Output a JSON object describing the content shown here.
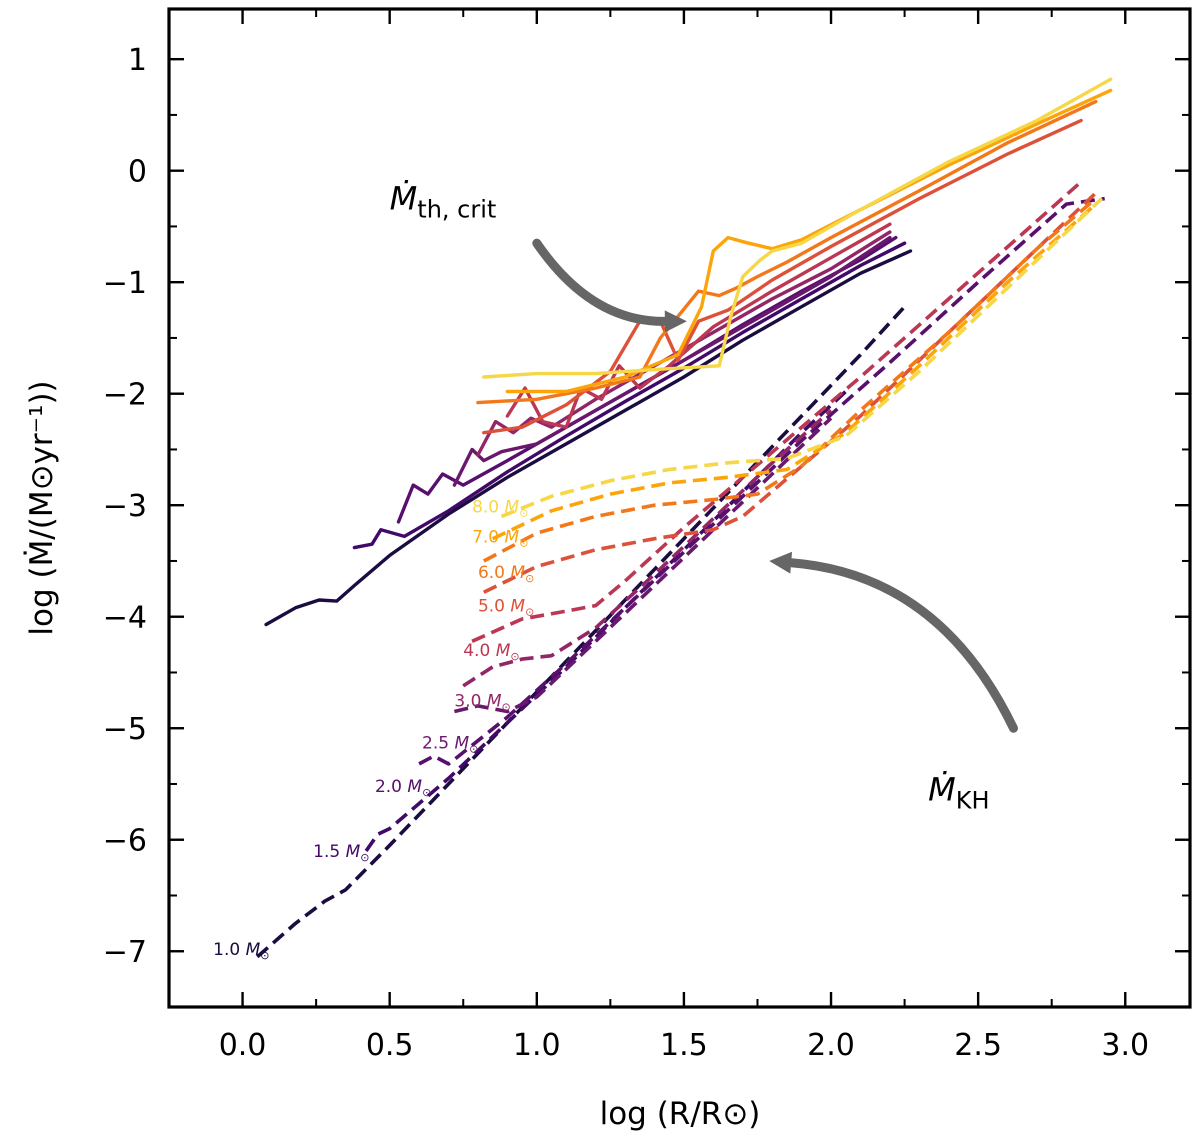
{
  "chart_data": {
    "type": "line",
    "title": "",
    "xlabel": "log (R/R⊙)",
    "ylabel": "log (Ṁ/(M⊙yr⁻¹))",
    "xlim": [
      -0.25,
      3.22
    ],
    "ylim": [
      -7.5,
      1.45
    ],
    "xticks": [
      0.0,
      0.5,
      1.0,
      1.5,
      2.0,
      2.5,
      3.0
    ],
    "xtick_labels": [
      "0.0",
      "0.5",
      "1.0",
      "1.5",
      "2.0",
      "2.5",
      "3.0"
    ],
    "yticks": [
      -7,
      -6,
      -5,
      -4,
      -3,
      -2,
      -1,
      0,
      1
    ],
    "ytick_labels": [
      "−7",
      "−6",
      "−5",
      "−4",
      "−3",
      "−2",
      "−1",
      "0",
      "1"
    ],
    "annotations": [
      {
        "id": "mth-crit",
        "text_main": "Ṁ",
        "text_sub": "th, crit",
        "x": 0.5,
        "y": -0.35
      },
      {
        "id": "mkh",
        "text_main": "Ṁ",
        "text_sub": "KH",
        "x": 2.33,
        "y": -5.65
      }
    ],
    "arrows": [
      {
        "id": "arrow-mth",
        "from": [
          1.0,
          -0.65
        ],
        "to": [
          1.51,
          -1.35
        ]
      },
      {
        "id": "arrow-mkh",
        "from": [
          2.62,
          -5.0
        ],
        "to": [
          1.79,
          -3.5
        ]
      }
    ],
    "series": [
      {
        "name": "1.0 M⊙",
        "label_text": "1.0",
        "color": "#1b0c41",
        "label_at": [
          -0.1,
          -6.98
        ],
        "mth_crit": [
          [
            0.08,
            -4.07
          ],
          [
            0.18,
            -3.92
          ],
          [
            0.26,
            -3.85
          ],
          [
            0.32,
            -3.86
          ],
          [
            0.38,
            -3.72
          ],
          [
            0.5,
            -3.45
          ],
          [
            0.7,
            -3.08
          ],
          [
            0.9,
            -2.75
          ],
          [
            1.1,
            -2.45
          ],
          [
            1.3,
            -2.15
          ],
          [
            1.5,
            -1.85
          ],
          [
            1.7,
            -1.52
          ],
          [
            1.9,
            -1.22
          ],
          [
            2.1,
            -0.92
          ],
          [
            2.27,
            -0.72
          ]
        ],
        "mkh": [
          [
            0.05,
            -7.05
          ],
          [
            0.18,
            -6.75
          ],
          [
            0.28,
            -6.55
          ],
          [
            0.35,
            -6.45
          ],
          [
            0.5,
            -6.05
          ],
          [
            0.7,
            -5.5
          ],
          [
            0.9,
            -4.95
          ],
          [
            1.1,
            -4.4
          ],
          [
            1.3,
            -3.85
          ],
          [
            1.5,
            -3.3
          ],
          [
            1.7,
            -2.75
          ],
          [
            1.9,
            -2.2
          ],
          [
            2.1,
            -1.65
          ],
          [
            2.25,
            -1.22
          ]
        ]
      },
      {
        "name": "1.5 M⊙",
        "label_text": "1.5",
        "color": "#420a68",
        "label_at": [
          0.24,
          -6.1
        ],
        "mth_crit": [
          [
            0.38,
            -3.38
          ],
          [
            0.44,
            -3.35
          ],
          [
            0.47,
            -3.22
          ],
          [
            0.55,
            -3.28
          ],
          [
            0.7,
            -3.05
          ],
          [
            0.9,
            -2.7
          ],
          [
            1.1,
            -2.38
          ],
          [
            1.3,
            -2.07
          ],
          [
            1.5,
            -1.77
          ],
          [
            1.7,
            -1.45
          ],
          [
            1.9,
            -1.15
          ],
          [
            2.1,
            -0.85
          ],
          [
            2.25,
            -0.65
          ]
        ],
        "mkh": [
          [
            0.42,
            -6.1
          ],
          [
            0.46,
            -5.95
          ],
          [
            0.5,
            -5.9
          ],
          [
            0.7,
            -5.45
          ],
          [
            0.9,
            -4.95
          ],
          [
            1.1,
            -4.45
          ],
          [
            1.3,
            -3.92
          ],
          [
            1.5,
            -3.4
          ],
          [
            1.7,
            -2.88
          ],
          [
            1.9,
            -2.35
          ],
          [
            2.05,
            -1.98
          ]
        ]
      },
      {
        "name": "2.0 M⊙",
        "label_text": "2.0",
        "color": "#57106e",
        "label_at": [
          0.45,
          -5.52
        ],
        "mth_crit": [
          [
            0.53,
            -3.15
          ],
          [
            0.58,
            -2.82
          ],
          [
            0.63,
            -2.9
          ],
          [
            0.68,
            -2.72
          ],
          [
            0.75,
            -2.82
          ],
          [
            0.9,
            -2.6
          ],
          [
            1.1,
            -2.3
          ],
          [
            1.3,
            -2.0
          ],
          [
            1.5,
            -1.7
          ],
          [
            1.7,
            -1.38
          ],
          [
            1.9,
            -1.08
          ],
          [
            2.1,
            -0.8
          ],
          [
            2.22,
            -0.6
          ]
        ],
        "mkh": [
          [
            0.6,
            -5.32
          ],
          [
            0.65,
            -5.25
          ],
          [
            0.7,
            -5.32
          ],
          [
            0.72,
            -5.28
          ],
          [
            0.9,
            -4.9
          ],
          [
            1.1,
            -4.42
          ],
          [
            1.3,
            -3.92
          ],
          [
            1.5,
            -3.42
          ],
          [
            1.7,
            -2.92
          ],
          [
            1.9,
            -2.42
          ],
          [
            2.2,
            -1.72
          ],
          [
            2.5,
            -1.0
          ],
          [
            2.8,
            -0.3
          ],
          [
            2.93,
            -0.25
          ]
        ]
      },
      {
        "name": "2.5 M⊙",
        "label_text": "2.5",
        "color": "#6a176e",
        "label_at": [
          0.61,
          -5.13
        ],
        "mth_crit": [
          [
            0.72,
            -2.82
          ],
          [
            0.78,
            -2.5
          ],
          [
            0.82,
            -2.6
          ],
          [
            0.88,
            -2.52
          ],
          [
            1.0,
            -2.45
          ],
          [
            1.2,
            -2.15
          ],
          [
            1.4,
            -1.85
          ],
          [
            1.6,
            -1.55
          ],
          [
            1.8,
            -1.25
          ],
          [
            2.0,
            -0.95
          ],
          [
            2.2,
            -0.6
          ]
        ],
        "mkh": [
          [
            0.72,
            -4.85
          ],
          [
            0.8,
            -4.8
          ],
          [
            0.9,
            -4.85
          ],
          [
            1.0,
            -4.72
          ],
          [
            1.2,
            -4.22
          ],
          [
            1.4,
            -3.72
          ],
          [
            1.6,
            -3.22
          ],
          [
            1.8,
            -2.72
          ],
          [
            2.0,
            -2.22
          ]
        ]
      },
      {
        "name": "3.0 M⊙",
        "label_text": "3.0",
        "color": "#932667",
        "label_at": [
          0.72,
          -4.75
        ],
        "mth_crit": [
          [
            0.8,
            -2.55
          ],
          [
            0.86,
            -2.25
          ],
          [
            0.92,
            -2.35
          ],
          [
            0.98,
            -2.22
          ],
          [
            1.05,
            -2.3
          ],
          [
            1.2,
            -2.05
          ],
          [
            1.4,
            -1.75
          ],
          [
            1.6,
            -1.45
          ],
          [
            1.8,
            -1.15
          ],
          [
            2.0,
            -0.88
          ],
          [
            2.2,
            -0.55
          ]
        ],
        "mkh": [
          [
            0.75,
            -4.62
          ],
          [
            0.85,
            -4.45
          ],
          [
            0.95,
            -4.38
          ],
          [
            1.05,
            -4.35
          ],
          [
            1.2,
            -4.1
          ],
          [
            1.4,
            -3.62
          ],
          [
            1.6,
            -3.12
          ],
          [
            1.8,
            -2.62
          ],
          [
            2.0,
            -2.15
          ]
        ]
      },
      {
        "name": "4.0 M⊙",
        "label_text": "4.0",
        "color": "#bc3754",
        "label_at": [
          0.75,
          -4.3
        ],
        "mth_crit": [
          [
            0.9,
            -2.2
          ],
          [
            0.96,
            -1.95
          ],
          [
            1.02,
            -2.25
          ],
          [
            1.1,
            -2.3
          ],
          [
            1.15,
            -1.95
          ],
          [
            1.22,
            -2.05
          ],
          [
            1.28,
            -1.75
          ],
          [
            1.35,
            -1.95
          ],
          [
            1.45,
            -1.75
          ],
          [
            1.6,
            -1.4
          ],
          [
            1.8,
            -1.08
          ],
          [
            2.0,
            -0.78
          ],
          [
            2.2,
            -0.48
          ]
        ],
        "mkh": [
          [
            0.78,
            -4.22
          ],
          [
            0.95,
            -4.02
          ],
          [
            1.1,
            -3.95
          ],
          [
            1.2,
            -3.9
          ],
          [
            1.3,
            -3.68
          ],
          [
            1.5,
            -3.2
          ],
          [
            1.7,
            -2.75
          ],
          [
            1.9,
            -2.3
          ],
          [
            2.1,
            -1.85
          ],
          [
            2.4,
            -1.15
          ],
          [
            2.7,
            -0.45
          ],
          [
            2.85,
            -0.1
          ]
        ]
      },
      {
        "name": "5.0 M⊙",
        "label_text": "5.0",
        "color": "#dd513a",
        "label_at": [
          0.8,
          -3.9
        ],
        "mth_crit": [
          [
            0.82,
            -2.35
          ],
          [
            0.95,
            -2.3
          ],
          [
            1.1,
            -2.1
          ],
          [
            1.25,
            -1.8
          ],
          [
            1.35,
            -1.35
          ],
          [
            1.42,
            -1.35
          ],
          [
            1.48,
            -1.7
          ],
          [
            1.55,
            -1.35
          ],
          [
            1.65,
            -1.25
          ],
          [
            1.8,
            -0.98
          ],
          [
            2.0,
            -0.68
          ],
          [
            2.3,
            -0.25
          ],
          [
            2.6,
            0.15
          ],
          [
            2.85,
            0.45
          ]
        ],
        "mkh": [
          [
            0.82,
            -3.78
          ],
          [
            1.0,
            -3.55
          ],
          [
            1.2,
            -3.4
          ],
          [
            1.4,
            -3.3
          ],
          [
            1.6,
            -3.22
          ],
          [
            1.7,
            -3.1
          ],
          [
            1.9,
            -2.65
          ],
          [
            2.1,
            -2.2
          ],
          [
            2.4,
            -1.45
          ],
          [
            2.7,
            -0.7
          ],
          [
            2.9,
            -0.2
          ]
        ]
      },
      {
        "name": "6.0 M⊙",
        "label_text": "6.0",
        "color": "#f37819",
        "label_at": [
          0.8,
          -3.6
        ],
        "mth_crit": [
          [
            0.8,
            -2.08
          ],
          [
            1.0,
            -2.05
          ],
          [
            1.2,
            -1.95
          ],
          [
            1.35,
            -1.85
          ],
          [
            1.42,
            -1.5
          ],
          [
            1.55,
            -1.08
          ],
          [
            1.62,
            -1.12
          ],
          [
            1.68,
            -1.05
          ],
          [
            1.75,
            -0.95
          ],
          [
            1.85,
            -0.82
          ],
          [
            2.0,
            -0.6
          ],
          [
            2.3,
            -0.18
          ],
          [
            2.6,
            0.25
          ],
          [
            2.9,
            0.62
          ]
        ],
        "mkh": [
          [
            0.82,
            -3.5
          ],
          [
            1.0,
            -3.25
          ],
          [
            1.2,
            -3.1
          ],
          [
            1.4,
            -3.0
          ],
          [
            1.6,
            -2.95
          ],
          [
            1.75,
            -2.9
          ],
          [
            1.9,
            -2.65
          ],
          [
            2.1,
            -2.15
          ],
          [
            2.4,
            -1.45
          ],
          [
            2.7,
            -0.7
          ],
          [
            2.9,
            -0.25
          ]
        ]
      },
      {
        "name": "7.0 M⊙",
        "label_text": "7.0",
        "color": "#fca50a",
        "label_at": [
          0.78,
          -3.28
        ],
        "mth_crit": [
          [
            0.9,
            -1.98
          ],
          [
            1.1,
            -1.98
          ],
          [
            1.3,
            -1.85
          ],
          [
            1.48,
            -1.65
          ],
          [
            1.56,
            -1.22
          ],
          [
            1.6,
            -0.72
          ],
          [
            1.65,
            -0.6
          ],
          [
            1.72,
            -0.65
          ],
          [
            1.8,
            -0.7
          ],
          [
            1.9,
            -0.62
          ],
          [
            2.1,
            -0.35
          ],
          [
            2.4,
            0.05
          ],
          [
            2.7,
            0.42
          ],
          [
            2.95,
            0.72
          ]
        ],
        "mkh": [
          [
            0.85,
            -3.3
          ],
          [
            1.05,
            -3.05
          ],
          [
            1.25,
            -2.9
          ],
          [
            1.45,
            -2.8
          ],
          [
            1.65,
            -2.75
          ],
          [
            1.85,
            -2.68
          ],
          [
            2.05,
            -2.35
          ],
          [
            2.3,
            -1.75
          ],
          [
            2.6,
            -1.0
          ],
          [
            2.9,
            -0.3
          ]
        ]
      },
      {
        "name": "8.0 M⊙",
        "label_text": "8.0",
        "color": "#f6d746",
        "label_at": [
          0.78,
          -3.01
        ],
        "mth_crit": [
          [
            0.82,
            -1.85
          ],
          [
            1.0,
            -1.82
          ],
          [
            1.2,
            -1.82
          ],
          [
            1.42,
            -1.78
          ],
          [
            1.62,
            -1.75
          ],
          [
            1.66,
            -1.3
          ],
          [
            1.7,
            -0.95
          ],
          [
            1.76,
            -0.8
          ],
          [
            1.8,
            -0.72
          ],
          [
            1.9,
            -0.65
          ],
          [
            2.1,
            -0.35
          ],
          [
            2.4,
            0.08
          ],
          [
            2.7,
            0.45
          ],
          [
            2.95,
            0.82
          ]
        ],
        "mkh": [
          [
            0.88,
            -3.1
          ],
          [
            1.05,
            -2.92
          ],
          [
            1.25,
            -2.78
          ],
          [
            1.45,
            -2.68
          ],
          [
            1.65,
            -2.62
          ],
          [
            1.85,
            -2.58
          ],
          [
            2.05,
            -2.38
          ],
          [
            2.3,
            -1.8
          ],
          [
            2.6,
            -1.05
          ],
          [
            2.92,
            -0.25
          ]
        ]
      }
    ]
  }
}
